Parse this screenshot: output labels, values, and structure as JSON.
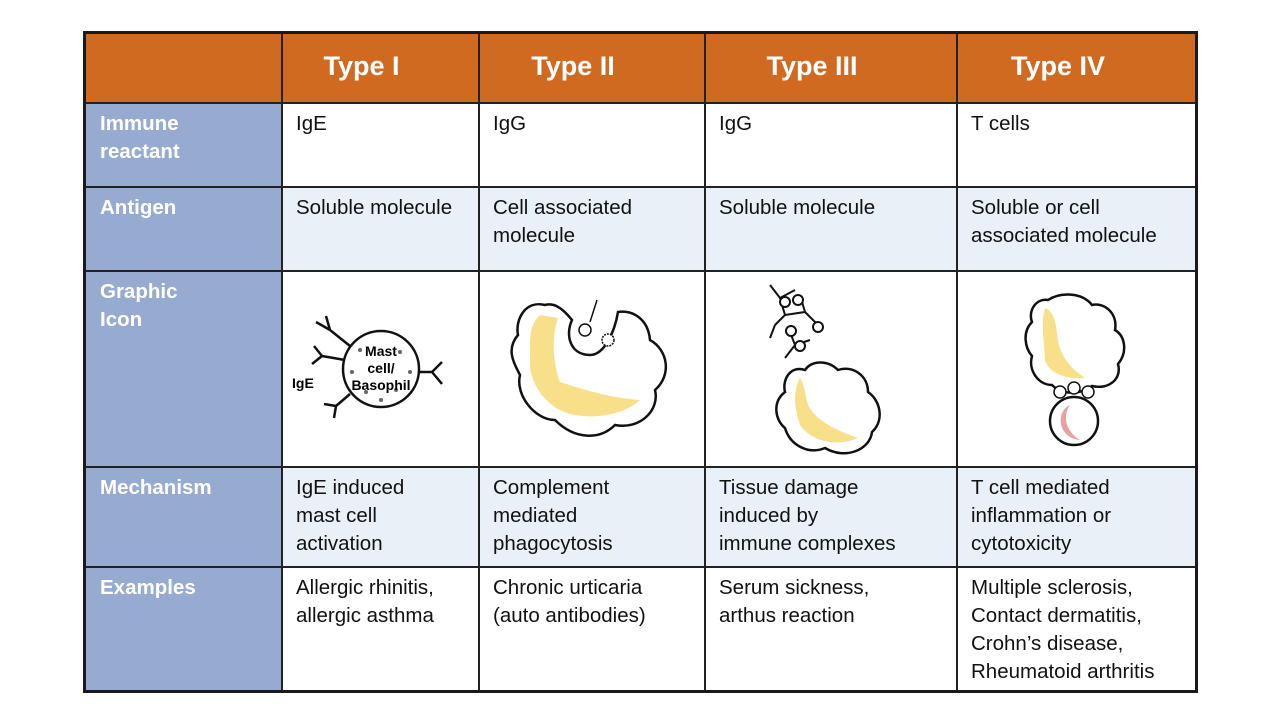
{
  "table": {
    "columns": [
      "Type I",
      "Type II",
      "Type III",
      "Type IV"
    ],
    "rows": [
      {
        "label": [
          "Immune",
          "reactant"
        ],
        "cells": [
          [
            "IgE"
          ],
          [
            "IgG"
          ],
          [
            "IgG"
          ],
          [
            "T cells"
          ]
        ]
      },
      {
        "label": [
          "Antigen"
        ],
        "cells": [
          [
            "Soluble molecule"
          ],
          [
            "Cell associated",
            "molecule"
          ],
          [
            "Soluble molecule"
          ],
          [
            "Soluble or cell",
            "associated molecule"
          ]
        ]
      },
      {
        "label": [
          "Graphic",
          "Icon"
        ]
      },
      {
        "label": [
          "Mechanism"
        ],
        "cells": [
          [
            "IgE induced",
            "mast cell",
            "activation"
          ],
          [
            "Complement",
            "mediated",
            "phagocytosis"
          ],
          [
            "Tissue damage",
            "induced by",
            "immune complexes"
          ],
          [
            "T cell mediated",
            "inflammation or",
            "cytotoxicity"
          ]
        ]
      },
      {
        "label": [
          "Examples"
        ],
        "cells": [
          [
            "Allergic rhinitis,",
            "allergic asthma"
          ],
          [
            "Chronic urticaria",
            "(auto antibodies)"
          ],
          [
            "Serum sickness,",
            "arthus reaction"
          ],
          [
            "Multiple sclerosis,",
            "Contact dermatitis,",
            "Crohn’s disease,",
            "Rheumatoid arthritis"
          ]
        ]
      }
    ]
  },
  "icons": {
    "type_i": {
      "cell_label": [
        "Mast",
        "cell/",
        "Basophil"
      ],
      "antibody_label": "IgE"
    }
  }
}
